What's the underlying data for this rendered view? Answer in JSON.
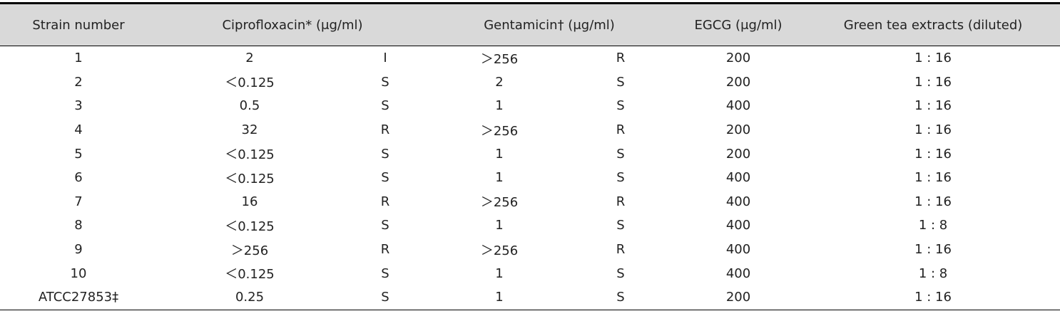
{
  "table": {
    "header": [
      "Strain  number",
      "Ciprofloxacin* (μg/ml)",
      "Gentamicin†  (μg/ml)",
      "EGCG (μg/ml)",
      "Green  tea  extracts  (diluted)"
    ],
    "rows": [
      [
        "1",
        "2",
        "I",
        "＞256",
        "R",
        "200",
        "1 : 16"
      ],
      [
        "2",
        "＜0.125",
        "S",
        "2",
        "S",
        "200",
        "1 : 16"
      ],
      [
        "3",
        "0.5",
        "S",
        "1",
        "S",
        "400",
        "1 : 16"
      ],
      [
        "4",
        "32",
        "R",
        "＞256",
        "R",
        "200",
        "1 : 16"
      ],
      [
        "5",
        "＜0.125",
        "S",
        "1",
        "S",
        "200",
        "1 : 16"
      ],
      [
        "6",
        "＜0.125",
        "S",
        "1",
        "S",
        "400",
        "1 : 16"
      ],
      [
        "7",
        "16",
        "R",
        "＞256",
        "R",
        "400",
        "1 : 16"
      ],
      [
        "8",
        "＜0.125",
        "S",
        "1",
        "S",
        "400",
        "1 : 8"
      ],
      [
        "9",
        "＞256",
        "R",
        "＞256",
        "R",
        "400",
        "1 : 16"
      ],
      [
        "10",
        "＜0.125",
        "S",
        "1",
        "S",
        "400",
        "1 : 8"
      ],
      [
        "ATCC27853‡",
        "0.25",
        "S",
        "1",
        "S",
        "200",
        "1 : 16"
      ]
    ]
  }
}
